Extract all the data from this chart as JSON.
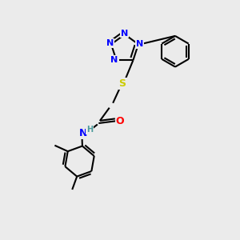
{
  "bg_color": "#ebebeb",
  "atom_colors": {
    "N": "#0000ff",
    "O": "#ff0000",
    "S": "#cccc00",
    "C": "#000000",
    "H": "#4a9a9a"
  },
  "bond_color": "#000000",
  "bond_width": 1.5
}
